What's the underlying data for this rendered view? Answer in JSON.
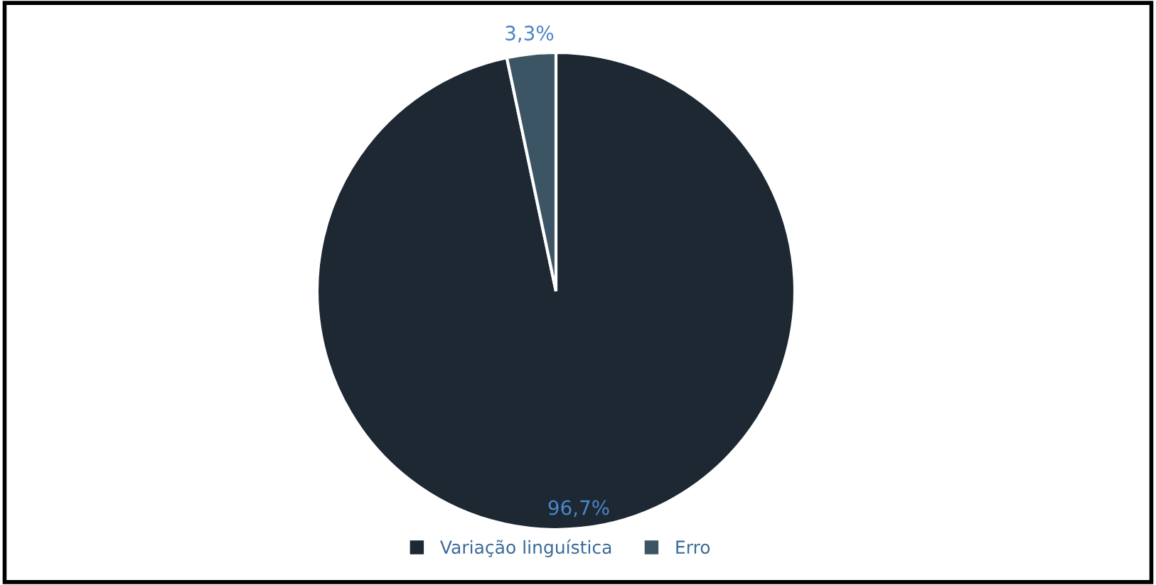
{
  "chart_data": {
    "type": "pie",
    "categories": [
      "Variação linguística",
      "Erro"
    ],
    "values": [
      96.7,
      3.3
    ],
    "colors": [
      "#1d2833",
      "#3c5565"
    ],
    "value_labels": [
      "96,7%",
      "3,3%"
    ],
    "legend": "bottom"
  }
}
